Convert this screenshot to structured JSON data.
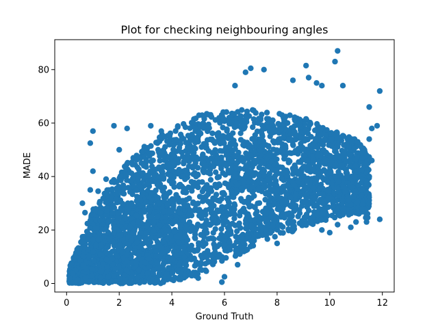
{
  "chart_data": {
    "type": "scatter",
    "title": "Plot for checking neighbouring angles",
    "xlabel": "Ground Truth",
    "ylabel": "MADE",
    "xlim": [
      -0.45,
      12.45
    ],
    "ylim": [
      -3.2,
      91.2
    ],
    "xticks": [
      0,
      2,
      4,
      6,
      8,
      10,
      12
    ],
    "yticks": [
      0,
      20,
      40,
      60,
      80
    ],
    "xtick_labels": [
      "0",
      "2",
      "4",
      "6",
      "8",
      "10",
      "12"
    ],
    "ytick_labels": [
      "0",
      "20",
      "40",
      "60",
      "80"
    ],
    "grid": false,
    "legend": "none",
    "marker_color": "#1f77b4",
    "density_envelope_note_free": true,
    "band": {
      "x": [
        0.1,
        0.5,
        1.0,
        2.0,
        3.0,
        4.0,
        5.0,
        6.0,
        7.0,
        8.0,
        9.0,
        10.0,
        11.0,
        11.5
      ],
      "low": [
        0,
        0,
        0,
        0,
        0,
        1,
        3,
        8,
        13,
        17,
        21,
        24,
        26,
        24
      ],
      "high": [
        6,
        15,
        28,
        42,
        52,
        58,
        63,
        65,
        65,
        64,
        62,
        58,
        54,
        48
      ]
    },
    "outliers": [
      [
        10.3,
        87
      ],
      [
        10.2,
        83
      ],
      [
        9.1,
        81.5
      ],
      [
        7.0,
        80.5
      ],
      [
        7.5,
        80
      ],
      [
        6.8,
        79
      ],
      [
        9.2,
        77
      ],
      [
        8.6,
        76
      ],
      [
        9.7,
        74
      ],
      [
        10.5,
        74
      ],
      [
        6.4,
        74
      ],
      [
        9.5,
        75
      ],
      [
        11.9,
        72
      ],
      [
        1.0,
        57
      ],
      [
        0.9,
        52.5
      ],
      [
        1.8,
        59
      ],
      [
        2.3,
        58
      ],
      [
        3.2,
        59
      ],
      [
        3.6,
        57
      ],
      [
        2.0,
        50
      ],
      [
        1.0,
        42
      ],
      [
        0.9,
        35
      ],
      [
        1.2,
        34.5
      ],
      [
        1.5,
        39
      ],
      [
        0.6,
        30
      ],
      [
        0.7,
        26.5
      ],
      [
        1.9,
        38
      ],
      [
        11.5,
        66
      ],
      [
        11.8,
        59
      ],
      [
        11.6,
        58
      ],
      [
        11.5,
        54
      ],
      [
        11.2,
        51
      ],
      [
        11.6,
        46
      ],
      [
        11.5,
        40
      ],
      [
        11.4,
        38
      ],
      [
        11.2,
        33
      ],
      [
        10.5,
        28
      ],
      [
        10.8,
        21
      ],
      [
        11.0,
        23
      ],
      [
        11.4,
        23
      ],
      [
        11.9,
        24
      ],
      [
        10.3,
        22
      ],
      [
        10.0,
        19
      ],
      [
        9.7,
        20
      ],
      [
        8.0,
        15
      ],
      [
        7.2,
        18
      ],
      [
        6.5,
        7
      ],
      [
        6.0,
        2.5
      ],
      [
        5.9,
        0.5
      ],
      [
        5.0,
        2
      ],
      [
        4.5,
        3
      ],
      [
        4.0,
        1.5
      ]
    ]
  }
}
